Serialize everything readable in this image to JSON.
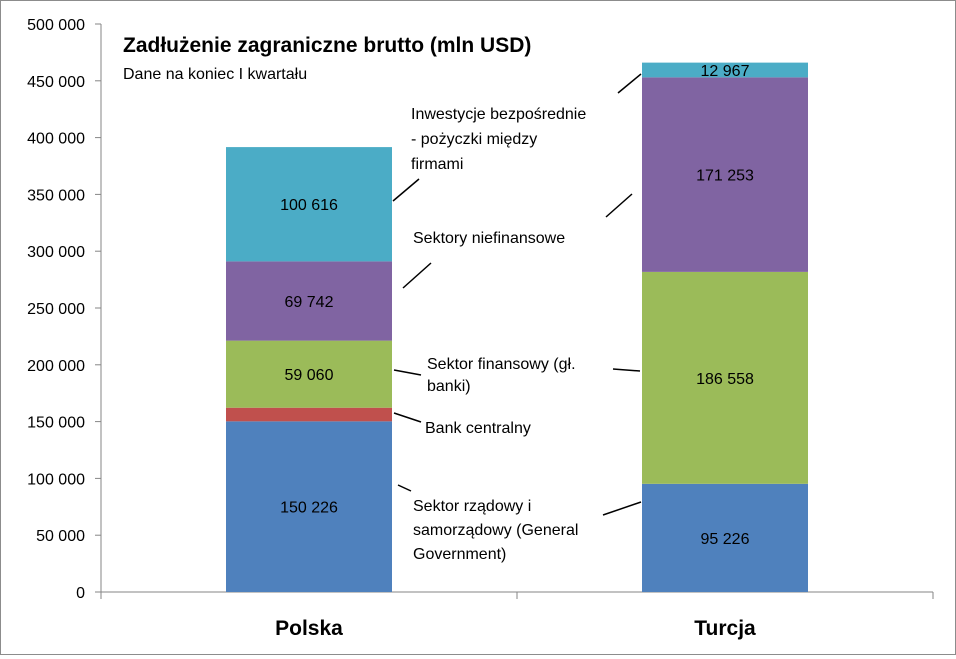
{
  "chart_data": {
    "type": "bar",
    "stacked": true,
    "title": "Zadłużenie zagraniczne brutto (mln USD)",
    "subtitle": "Dane na koniec I kwartału",
    "categories": [
      "Polska",
      "Turcja"
    ],
    "ylim": [
      0,
      500000
    ],
    "yticks": [
      0,
      50000,
      100000,
      150000,
      200000,
      250000,
      300000,
      350000,
      400000,
      450000,
      500000
    ],
    "ytick_labels": [
      "0",
      "50 000",
      "100 000",
      "150 000",
      "200 000",
      "250 000",
      "300 000",
      "350 000",
      "400 000",
      "450 000",
      "500 000"
    ],
    "grid": false,
    "series": [
      {
        "name": "Sektor rządowy i samorządowy (General Government)",
        "color": "#4f81bd",
        "values": [
          150226,
          95226
        ],
        "labels": [
          "150 226",
          "95 226"
        ]
      },
      {
        "name": "Bank centralny",
        "color": "#c0504d",
        "values": [
          12000,
          0
        ],
        "labels": [
          "",
          ""
        ]
      },
      {
        "name": "Sektor finansowy (gł. banki)",
        "color": "#9bbb59",
        "values": [
          59060,
          186558
        ],
        "labels": [
          "59 060",
          "186 558"
        ]
      },
      {
        "name": "Sektory niefinansowe",
        "color": "#8064a2",
        "values": [
          69742,
          171253
        ],
        "labels": [
          "69 742",
          "171 253"
        ]
      },
      {
        "name": "Inwestycje bezpośrednie - pożyczki między firmami",
        "color": "#4bacc6",
        "values": [
          100616,
          12967
        ],
        "labels": [
          "100 616",
          "12 967"
        ]
      }
    ],
    "annotations": [
      {
        "lines": [
          "Inwestycje bezpośrednie",
          "- pożyczki między",
          "firmami"
        ]
      },
      {
        "lines": [
          "Sektory niefinansowe"
        ]
      },
      {
        "lines": [
          "Sektor finansowy (gł.",
          "banki)"
        ]
      },
      {
        "lines": [
          "Bank centralny"
        ]
      },
      {
        "lines": [
          "Sektor rządowy i",
          "samorządowy (General",
          "Government)"
        ]
      }
    ]
  }
}
